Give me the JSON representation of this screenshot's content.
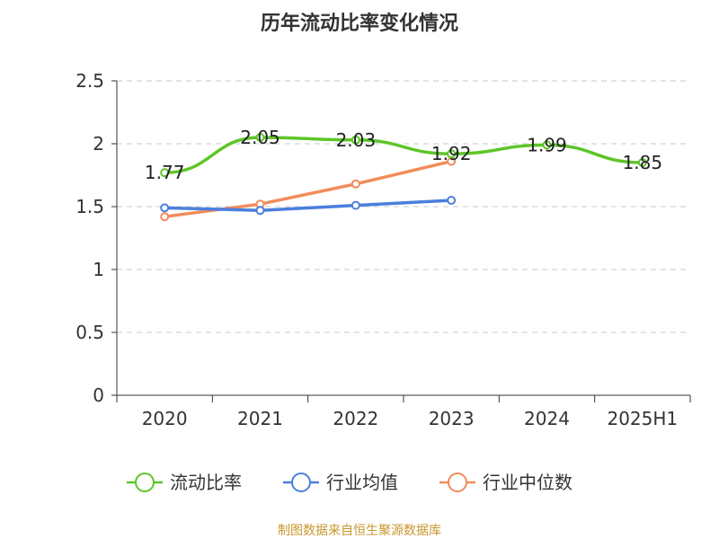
{
  "source_text": "制图数据来自恒生聚源数据库",
  "chart_data": {
    "type": "line",
    "title": "历年流动比率变化情况",
    "categories": [
      "2020",
      "2021",
      "2022",
      "2023",
      "2024",
      "2025H1"
    ],
    "ylim": [
      0,
      2.5
    ],
    "yticks": [
      "0",
      "0.5",
      "1",
      "1.5",
      "2",
      "2.5"
    ],
    "ytick_values": [
      0,
      0.5,
      1,
      1.5,
      2,
      2.5
    ],
    "grid": true,
    "legend_position": "bottom",
    "series": [
      {
        "name": "流动比率",
        "color": "#5dc528",
        "values": [
          1.77,
          2.05,
          2.03,
          1.92,
          1.99,
          1.85
        ],
        "labels": [
          "1.77",
          "2.05",
          "2.03",
          "1.92",
          "1.99",
          "1.85"
        ]
      },
      {
        "name": "行业均值",
        "color": "#4b7fdd",
        "values": [
          1.49,
          1.47,
          1.51,
          1.55,
          null,
          null
        ]
      },
      {
        "name": "行业中位数",
        "color": "#f28c5a",
        "values": [
          1.42,
          1.52,
          1.68,
          1.86,
          null,
          null
        ]
      }
    ]
  }
}
